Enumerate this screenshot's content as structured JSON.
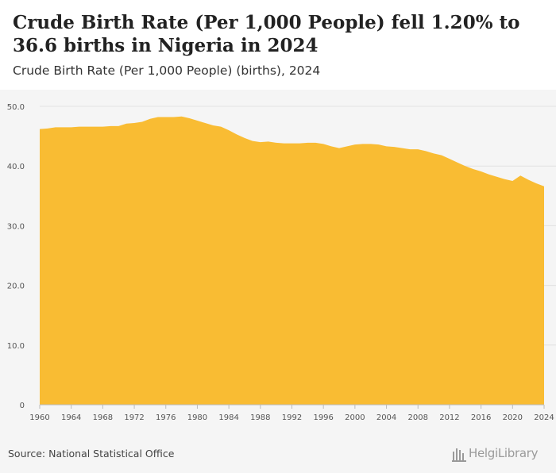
{
  "header": {
    "title": "Crude Birth Rate (Per 1,000 People) fell 1.20% to 36.6 births in Nigeria in 2024",
    "subtitle": "Crude Birth Rate (Per 1,000 People) (births), 2024"
  },
  "footer": {
    "source": "Source: National Statistical Office",
    "logo_text": "HelgiLibrary"
  },
  "colors": {
    "area_fill": "#f9bc33",
    "background": "#f5f5f5",
    "axis_text": "#555555"
  },
  "chart_data": {
    "type": "area",
    "title": "Crude Birth Rate (Per 1,000 People) fell 1.20% to 36.6 births in Nigeria in 2024",
    "subtitle": "Crude Birth Rate (Per 1,000 People) (births), 2024",
    "xlabel": "",
    "ylabel": "",
    "x": [
      1960,
      1961,
      1962,
      1963,
      1964,
      1965,
      1966,
      1967,
      1968,
      1969,
      1970,
      1971,
      1972,
      1973,
      1974,
      1975,
      1976,
      1977,
      1978,
      1979,
      1980,
      1981,
      1982,
      1983,
      1984,
      1985,
      1986,
      1987,
      1988,
      1989,
      1990,
      1991,
      1992,
      1993,
      1994,
      1995,
      1996,
      1997,
      1998,
      1999,
      2000,
      2001,
      2002,
      2003,
      2004,
      2005,
      2006,
      2007,
      2008,
      2009,
      2010,
      2011,
      2012,
      2013,
      2014,
      2015,
      2016,
      2017,
      2018,
      2019,
      2020,
      2021,
      2022,
      2023,
      2024
    ],
    "series": [
      {
        "values": [
          46.2,
          46.3,
          46.5,
          46.5,
          46.5,
          46.6,
          46.6,
          46.6,
          46.6,
          46.7,
          46.7,
          47.1,
          47.2,
          47.4,
          47.9,
          48.2,
          48.2,
          48.2,
          48.3,
          48.0,
          47.6,
          47.2,
          46.8,
          46.6,
          46.0,
          45.3,
          44.7,
          44.2,
          44.0,
          44.1,
          43.9,
          43.8,
          43.8,
          43.8,
          43.9,
          43.9,
          43.7,
          43.3,
          43.0,
          43.3,
          43.6,
          43.7,
          43.7,
          43.6,
          43.3,
          43.2,
          43.0,
          42.8,
          42.8,
          42.5,
          42.1,
          41.8,
          41.2,
          40.6,
          40.0,
          39.5,
          39.1,
          38.6,
          38.2,
          37.8,
          37.5,
          38.4,
          37.7,
          37.1,
          36.6
        ]
      }
    ],
    "x_ticks": [
      "1960",
      "1964",
      "1968",
      "1972",
      "1976",
      "1980",
      "1984",
      "1988",
      "1992",
      "1996",
      "2000",
      "2004",
      "2008",
      "2012",
      "2016",
      "2020",
      "2024"
    ],
    "y_ticks": [
      "0",
      "10.0",
      "20.0",
      "30.0",
      "40.0",
      "50.0"
    ],
    "xlim": [
      1960,
      2024
    ],
    "ylim": [
      0,
      50
    ],
    "grid": true,
    "legend": "none"
  }
}
